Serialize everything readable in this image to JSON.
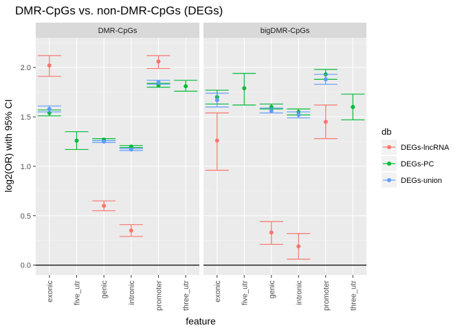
{
  "title": "DMR-CpGs vs. non-DMR-CpGs (DEGs)",
  "chart_data": {
    "type": "scatter",
    "title": "DMR-CpGs vs. non-DMR-CpGs (DEGs)",
    "xlabel": "feature",
    "ylabel": "log2(OR) with 95% CI",
    "ylim": [
      -0.1,
      2.3
    ],
    "yticks": [
      "0.0",
      "0.5",
      "1.0",
      "1.5",
      "2.0"
    ],
    "grid": true,
    "legend_placement": "right",
    "legend_title": "db",
    "categories": [
      "exonic",
      "five_utr",
      "genic",
      "intronic",
      "promoter",
      "three_utr"
    ],
    "series_info": [
      {
        "name": "DEGs-lncRNA",
        "color": "#F8766D"
      },
      {
        "name": "DEGs-PC",
        "color": "#00BA38"
      },
      {
        "name": "DEGs-union",
        "color": "#619CFF"
      }
    ],
    "panels": [
      {
        "name": "DMR-CpGs",
        "points": [
          {
            "x": "exonic",
            "series": "DEGs-lncRNA",
            "y": 2.02,
            "lo": 1.91,
            "hi": 2.12
          },
          {
            "x": "exonic",
            "series": "DEGs-PC",
            "y": 1.54,
            "lo": 1.51,
            "hi": 1.57
          },
          {
            "x": "exonic",
            "series": "DEGs-union",
            "y": 1.58,
            "lo": 1.55,
            "hi": 1.61
          },
          {
            "x": "five_utr",
            "series": "DEGs-PC",
            "y": 1.26,
            "lo": 1.17,
            "hi": 1.35
          },
          {
            "x": "genic",
            "series": "DEGs-lncRNA",
            "y": 0.6,
            "lo": 0.55,
            "hi": 0.65
          },
          {
            "x": "genic",
            "series": "DEGs-PC",
            "y": 1.27,
            "lo": 1.26,
            "hi": 1.28
          },
          {
            "x": "genic",
            "series": "DEGs-union",
            "y": 1.25,
            "lo": 1.24,
            "hi": 1.26
          },
          {
            "x": "intronic",
            "series": "DEGs-lncRNA",
            "y": 0.35,
            "lo": 0.29,
            "hi": 0.41
          },
          {
            "x": "intronic",
            "series": "DEGs-PC",
            "y": 1.2,
            "lo": 1.19,
            "hi": 1.21
          },
          {
            "x": "intronic",
            "series": "DEGs-union",
            "y": 1.17,
            "lo": 1.16,
            "hi": 1.18
          },
          {
            "x": "promoter",
            "series": "DEGs-lncRNA",
            "y": 2.06,
            "lo": 1.99,
            "hi": 2.12
          },
          {
            "x": "promoter",
            "series": "DEGs-PC",
            "y": 1.82,
            "lo": 1.8,
            "hi": 1.84
          },
          {
            "x": "promoter",
            "series": "DEGs-union",
            "y": 1.85,
            "lo": 1.83,
            "hi": 1.87
          },
          {
            "x": "three_utr",
            "series": "DEGs-PC",
            "y": 1.81,
            "lo": 1.76,
            "hi": 1.87
          }
        ]
      },
      {
        "name": "bigDMR-CpGs",
        "points": [
          {
            "x": "exonic",
            "series": "DEGs-lncRNA",
            "y": 1.26,
            "lo": 0.96,
            "hi": 1.54
          },
          {
            "x": "exonic",
            "series": "DEGs-PC",
            "y": 1.7,
            "lo": 1.63,
            "hi": 1.77
          },
          {
            "x": "exonic",
            "series": "DEGs-union",
            "y": 1.67,
            "lo": 1.6,
            "hi": 1.74
          },
          {
            "x": "five_utr",
            "series": "DEGs-PC",
            "y": 1.79,
            "lo": 1.62,
            "hi": 1.94
          },
          {
            "x": "genic",
            "series": "DEGs-lncRNA",
            "y": 0.33,
            "lo": 0.21,
            "hi": 0.44
          },
          {
            "x": "genic",
            "series": "DEGs-PC",
            "y": 1.6,
            "lo": 1.58,
            "hi": 1.63
          },
          {
            "x": "genic",
            "series": "DEGs-union",
            "y": 1.56,
            "lo": 1.54,
            "hi": 1.59
          },
          {
            "x": "intronic",
            "series": "DEGs-lncRNA",
            "y": 0.19,
            "lo": 0.06,
            "hi": 0.32
          },
          {
            "x": "intronic",
            "series": "DEGs-PC",
            "y": 1.55,
            "lo": 1.52,
            "hi": 1.58
          },
          {
            "x": "intronic",
            "series": "DEGs-union",
            "y": 1.52,
            "lo": 1.49,
            "hi": 1.55
          },
          {
            "x": "promoter",
            "series": "DEGs-lncRNA",
            "y": 1.45,
            "lo": 1.28,
            "hi": 1.62
          },
          {
            "x": "promoter",
            "series": "DEGs-PC",
            "y": 1.93,
            "lo": 1.88,
            "hi": 1.98
          },
          {
            "x": "promoter",
            "series": "DEGs-union",
            "y": 1.88,
            "lo": 1.83,
            "hi": 1.93
          },
          {
            "x": "three_utr",
            "series": "DEGs-PC",
            "y": 1.6,
            "lo": 1.47,
            "hi": 1.73
          }
        ]
      }
    ]
  }
}
